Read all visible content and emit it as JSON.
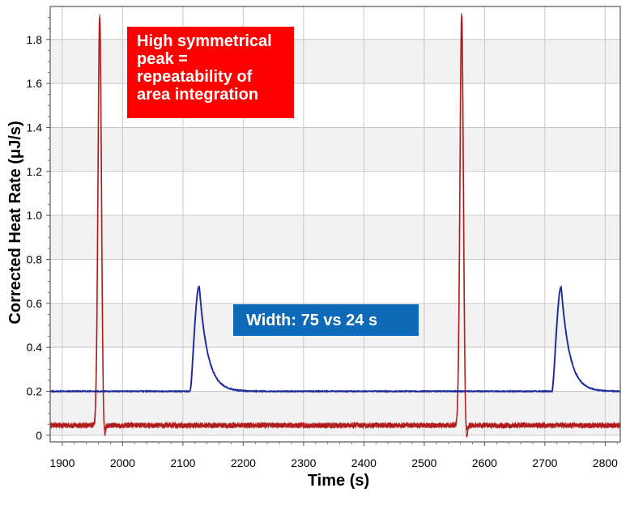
{
  "chart_data": {
    "type": "line",
    "title": "",
    "xlabel": "Time (s)",
    "ylabel": "Corrected Heat Rate (μJ/s)",
    "xlim": [
      1880,
      2825
    ],
    "ylim": [
      -0.03,
      1.95
    ],
    "x_ticks": [
      1900,
      2000,
      2100,
      2200,
      2300,
      2400,
      2500,
      2600,
      2700,
      2800
    ],
    "y_ticks": [
      0,
      0.2,
      0.4,
      0.6,
      0.8,
      1.0,
      1.2,
      1.4,
      1.6,
      1.8
    ],
    "x_tick_labels": [
      "1900",
      "2000",
      "2100",
      "2200",
      "2300",
      "2400",
      "2500",
      "2600",
      "2700",
      "2800"
    ],
    "y_tick_labels": [
      "0",
      "0.2",
      "0.4",
      "0.6",
      "0.8",
      "1.0",
      "1.2",
      "1.4",
      "1.6",
      "1.8"
    ],
    "grid": true,
    "legend": "none",
    "series": [
      {
        "color": "#b01818",
        "baseline": 0.045,
        "noise": 0.012,
        "peaks": [
          {
            "center": 1962,
            "height": 1.91,
            "width": 4
          },
          {
            "center": 2562,
            "height": 1.91,
            "width": 4
          }
        ]
      },
      {
        "color": "#1a2a9a",
        "baseline": 0.2,
        "noise": 0.003,
        "peaks": [
          {
            "start": 2112,
            "apex": 2127,
            "height": 0.68,
            "end": 2185
          },
          {
            "start": 2712,
            "apex": 2727,
            "height": 0.675,
            "end": 2785
          }
        ]
      }
    ],
    "annotations": [
      {
        "text": "High symmetrical peak = repeatability of area integration",
        "color": "#ff0000"
      },
      {
        "text": "Width: 75  vs 24 s",
        "color": "#0d6ab8"
      }
    ]
  },
  "annotation_red": {
    "line1": "High symmetrical",
    "line2": "peak =",
    "line3": "repeatability of",
    "line4": "area integration"
  },
  "annotation_blue": {
    "text": "Width: 75  vs 24 s"
  }
}
